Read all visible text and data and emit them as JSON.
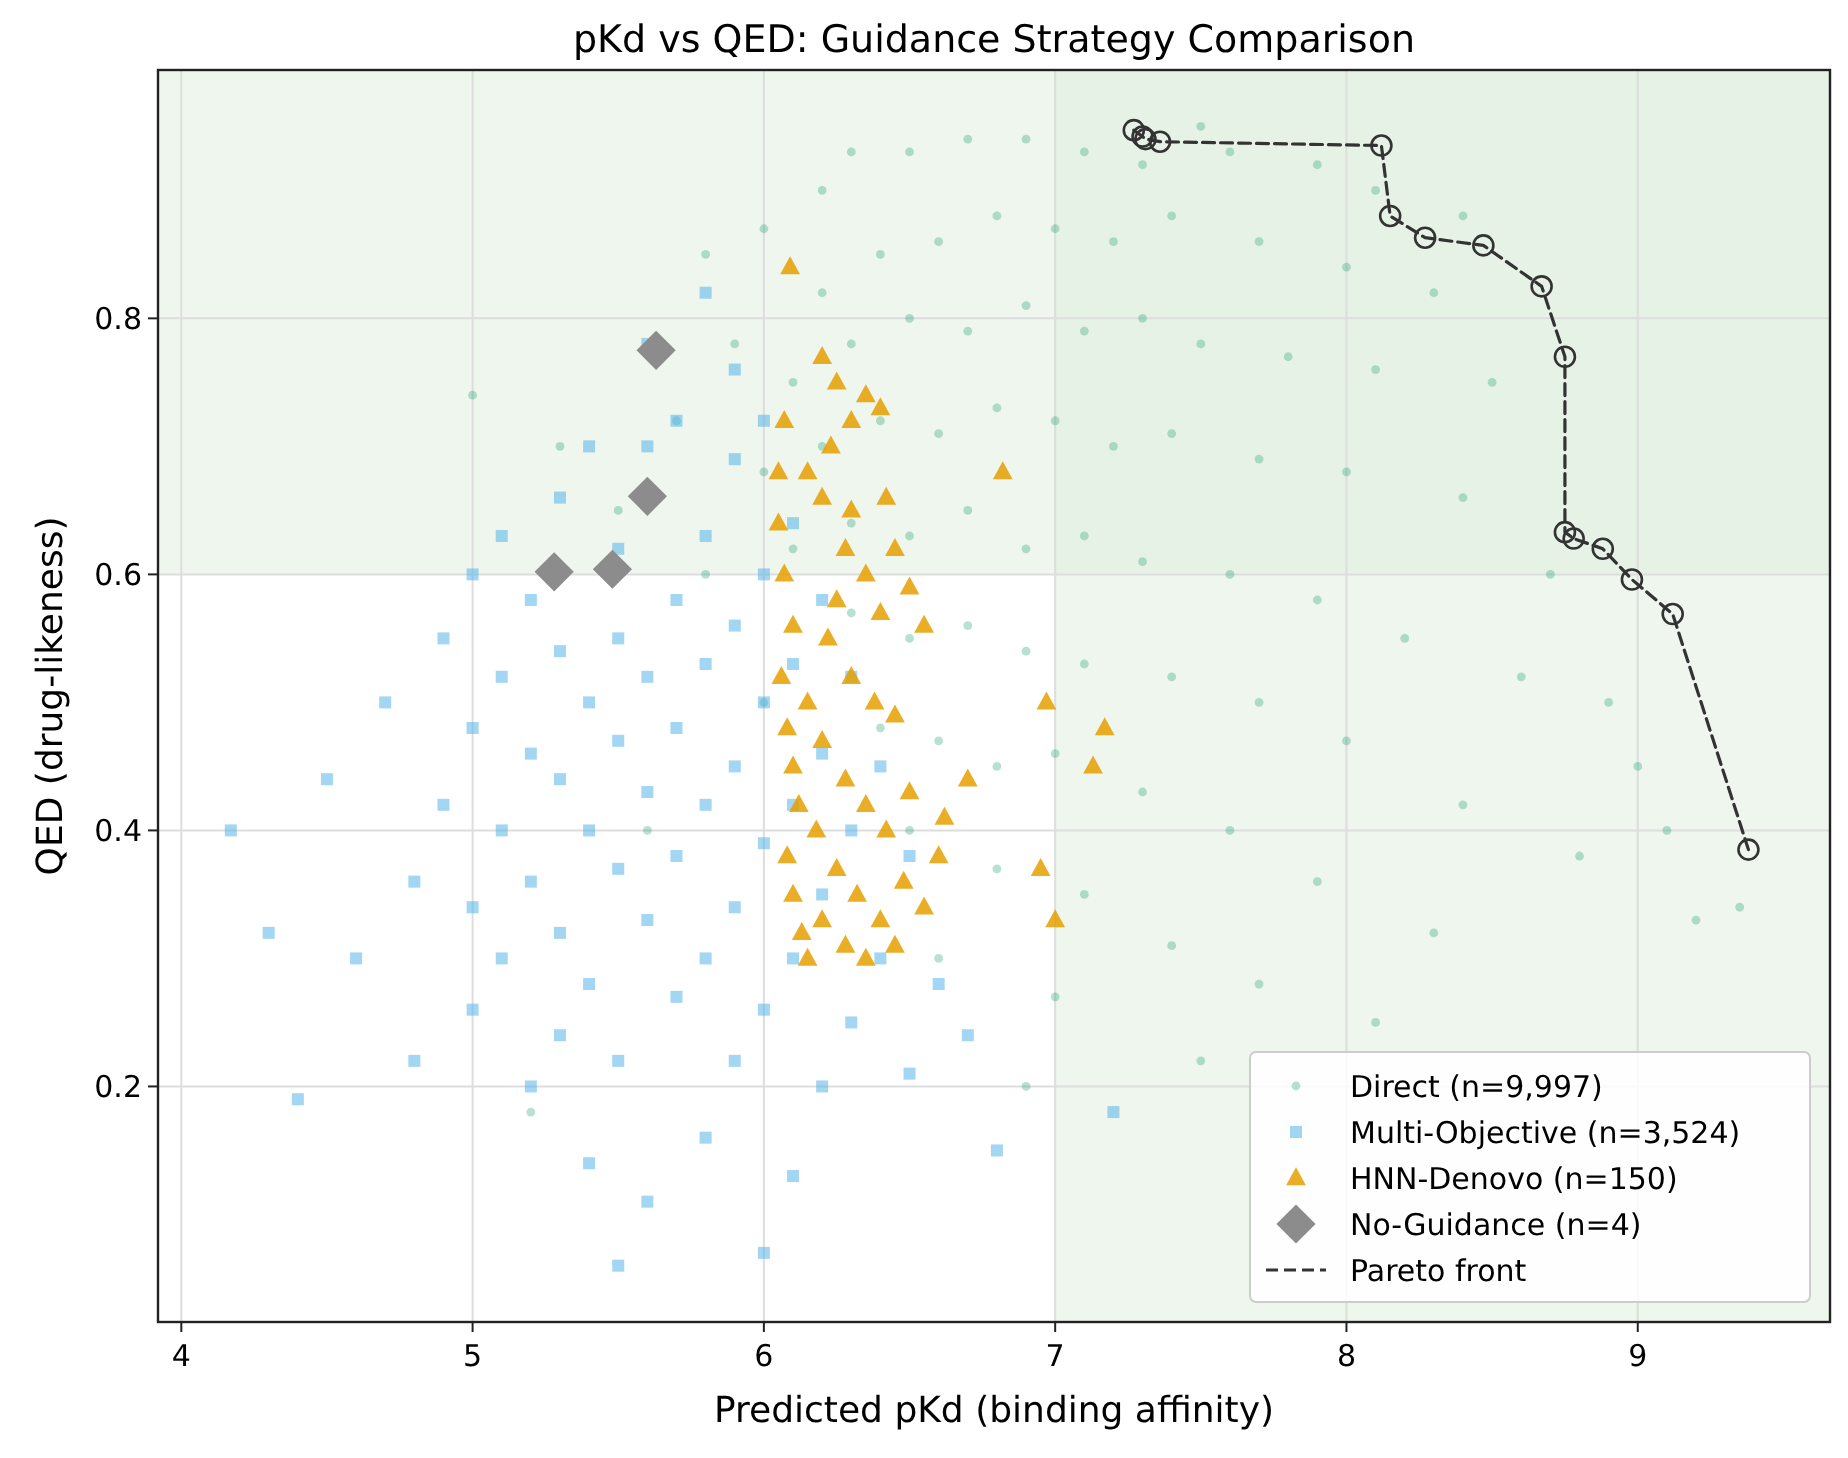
{
  "chart_data": {
    "type": "scatter",
    "title": "pKd vs QED: Guidance Strategy Comparison",
    "xlabel": "Predicted pKd (binding affinity)",
    "ylabel": "QED (drug-likeness)",
    "xlim": [
      3.92,
      9.66
    ],
    "ylim": [
      0.016,
      0.994
    ],
    "xticks": [
      4,
      5,
      6,
      7,
      8,
      9
    ],
    "yticks": [
      0.2,
      0.4,
      0.6,
      0.8
    ],
    "grid": true,
    "legend": "bottom right",
    "bands": [
      {
        "axis": "x",
        "from": 7,
        "to": 9.66,
        "color": "#e3f0e3"
      },
      {
        "axis": "y",
        "from": 0.6,
        "to": 0.994,
        "color": "#e3f0e3"
      }
    ],
    "series": [
      {
        "name": "Direct (n=9,997)",
        "marker": "circle",
        "color": "#0f9d6e",
        "x": [
          5.5,
          5.7,
          5.9,
          6.0,
          6.2,
          6.3,
          6.5,
          6.7,
          6.9,
          7.1,
          7.3,
          7.6,
          7.9,
          8.1,
          6.2,
          6.4,
          6.6,
          6.8,
          7.0,
          7.2,
          7.4,
          7.7,
          8.0,
          8.3,
          6.1,
          6.3,
          6.5,
          6.7,
          6.9,
          7.1,
          7.3,
          7.5,
          7.8,
          8.1,
          8.5,
          6.0,
          6.2,
          6.4,
          6.6,
          6.8,
          7.0,
          7.2,
          7.4,
          7.7,
          8.0,
          8.4,
          8.7,
          6.1,
          6.3,
          6.5,
          6.7,
          6.9,
          7.1,
          7.3,
          7.6,
          7.9,
          8.2,
          8.6,
          9.0,
          6.3,
          6.5,
          6.7,
          6.9,
          7.1,
          7.4,
          7.7,
          8.0,
          8.4,
          8.8,
          9.2,
          6.4,
          6.6,
          6.8,
          7.0,
          7.3,
          7.6,
          7.9,
          8.3,
          6.5,
          6.8,
          7.1,
          7.4,
          7.7,
          8.1,
          6.6,
          7.0,
          7.5,
          5.2,
          6.9,
          5.8,
          5.3,
          5.0,
          9.1,
          8.9,
          8.4,
          7.5,
          5.6,
          6.0,
          5.8,
          9.35
        ],
        "values": [
          0.65,
          0.72,
          0.78,
          0.87,
          0.9,
          0.93,
          0.93,
          0.94,
          0.94,
          0.93,
          0.92,
          0.93,
          0.92,
          0.9,
          0.82,
          0.85,
          0.86,
          0.88,
          0.87,
          0.86,
          0.88,
          0.86,
          0.84,
          0.82,
          0.75,
          0.78,
          0.8,
          0.79,
          0.81,
          0.79,
          0.8,
          0.78,
          0.77,
          0.76,
          0.75,
          0.68,
          0.7,
          0.72,
          0.71,
          0.73,
          0.72,
          0.7,
          0.71,
          0.69,
          0.68,
          0.66,
          0.6,
          0.62,
          0.64,
          0.63,
          0.65,
          0.62,
          0.63,
          0.61,
          0.6,
          0.58,
          0.55,
          0.52,
          0.45,
          0.57,
          0.55,
          0.56,
          0.54,
          0.53,
          0.52,
          0.5,
          0.47,
          0.42,
          0.38,
          0.33,
          0.48,
          0.47,
          0.45,
          0.46,
          0.43,
          0.4,
          0.36,
          0.32,
          0.4,
          0.37,
          0.35,
          0.31,
          0.28,
          0.25,
          0.3,
          0.27,
          0.22,
          0.18,
          0.2,
          0.85,
          0.7,
          0.74,
          0.4,
          0.5,
          0.88,
          0.95,
          0.4,
          0.5,
          0.6,
          0.34
        ]
      },
      {
        "name": "Multi-Objective (n=3,524)",
        "marker": "square",
        "color": "#56b4e9",
        "x": [
          4.17,
          4.3,
          4.4,
          4.5,
          4.6,
          4.7,
          4.8,
          4.8,
          4.9,
          4.9,
          5.0,
          5.0,
          5.0,
          5.0,
          5.1,
          5.1,
          5.1,
          5.1,
          5.2,
          5.2,
          5.2,
          5.2,
          5.3,
          5.3,
          5.3,
          5.3,
          5.3,
          5.4,
          5.4,
          5.4,
          5.4,
          5.4,
          5.5,
          5.5,
          5.5,
          5.5,
          5.5,
          5.6,
          5.6,
          5.6,
          5.6,
          5.6,
          5.6,
          5.7,
          5.7,
          5.7,
          5.7,
          5.7,
          5.8,
          5.8,
          5.8,
          5.8,
          5.8,
          5.8,
          5.9,
          5.9,
          5.9,
          5.9,
          5.9,
          5.9,
          6.0,
          6.0,
          6.0,
          6.0,
          6.0,
          6.0,
          6.1,
          6.1,
          6.1,
          6.1,
          6.1,
          6.2,
          6.2,
          6.2,
          6.2,
          6.3,
          6.3,
          6.3,
          6.4,
          6.4,
          6.5,
          6.5,
          6.6,
          6.7,
          6.8,
          7.2,
          5.5
        ],
        "values": [
          0.4,
          0.32,
          0.19,
          0.44,
          0.3,
          0.5,
          0.36,
          0.22,
          0.55,
          0.42,
          0.6,
          0.48,
          0.34,
          0.26,
          0.63,
          0.52,
          0.4,
          0.3,
          0.58,
          0.46,
          0.36,
          0.2,
          0.66,
          0.54,
          0.44,
          0.32,
          0.24,
          0.7,
          0.5,
          0.4,
          0.28,
          0.14,
          0.62,
          0.55,
          0.47,
          0.37,
          0.22,
          0.78,
          0.7,
          0.52,
          0.43,
          0.33,
          0.11,
          0.72,
          0.58,
          0.48,
          0.38,
          0.27,
          0.82,
          0.63,
          0.53,
          0.42,
          0.3,
          0.16,
          0.76,
          0.69,
          0.56,
          0.45,
          0.34,
          0.22,
          0.72,
          0.6,
          0.5,
          0.39,
          0.26,
          0.07,
          0.64,
          0.53,
          0.42,
          0.3,
          0.13,
          0.58,
          0.46,
          0.35,
          0.2,
          0.52,
          0.4,
          0.25,
          0.45,
          0.3,
          0.38,
          0.21,
          0.28,
          0.24,
          0.15,
          0.18,
          0.06
        ]
      },
      {
        "name": "HNN-Denovo (n=150)",
        "marker": "triangle",
        "color": "#e69f00",
        "x": [
          6.09,
          6.07,
          6.05,
          6.05,
          6.07,
          6.1,
          6.06,
          6.08,
          6.1,
          6.12,
          6.08,
          6.1,
          6.13,
          6.15,
          6.2,
          6.25,
          6.23,
          6.15,
          6.2,
          6.3,
          6.35,
          6.4,
          6.28,
          6.35,
          6.4,
          6.45,
          6.5,
          6.55,
          6.22,
          6.3,
          6.38,
          6.45,
          6.2,
          6.28,
          6.35,
          6.42,
          6.5,
          6.18,
          6.25,
          6.32,
          6.4,
          6.48,
          6.55,
          6.6,
          6.2,
          6.28,
          6.35,
          6.45,
          6.62,
          6.7,
          6.82,
          6.97,
          7.17,
          7.13,
          6.95,
          7.0,
          6.3,
          6.42,
          6.25,
          6.15
        ],
        "values": [
          0.84,
          0.72,
          0.68,
          0.64,
          0.6,
          0.56,
          0.52,
          0.48,
          0.45,
          0.42,
          0.38,
          0.35,
          0.32,
          0.3,
          0.77,
          0.75,
          0.7,
          0.68,
          0.66,
          0.72,
          0.74,
          0.73,
          0.62,
          0.6,
          0.57,
          0.62,
          0.59,
          0.56,
          0.55,
          0.52,
          0.5,
          0.49,
          0.47,
          0.44,
          0.42,
          0.4,
          0.43,
          0.4,
          0.37,
          0.35,
          0.33,
          0.36,
          0.34,
          0.38,
          0.33,
          0.31,
          0.3,
          0.31,
          0.41,
          0.44,
          0.68,
          0.5,
          0.48,
          0.45,
          0.37,
          0.33,
          0.65,
          0.66,
          0.58,
          0.5
        ]
      },
      {
        "name": "No-Guidance (n=4)",
        "marker": "diamond",
        "color": "#8c8c8c",
        "x": [
          5.28,
          5.48,
          5.6,
          5.63
        ],
        "values": [
          0.602,
          0.604,
          0.661,
          0.775
        ]
      },
      {
        "name": "Pareto front",
        "type": "line",
        "marker": "circle",
        "line_style": "dashed",
        "color": "#333333",
        "x": [
          7.27,
          7.3,
          7.31,
          7.36,
          8.12,
          8.15,
          8.27,
          8.47,
          8.67,
          8.75,
          8.75,
          8.78,
          8.88,
          8.98,
          9.12,
          9.38
        ],
        "values": [
          0.947,
          0.942,
          0.94,
          0.938,
          0.935,
          0.88,
          0.863,
          0.857,
          0.825,
          0.77,
          0.633,
          0.628,
          0.62,
          0.596,
          0.569,
          0.385
        ]
      }
    ]
  }
}
